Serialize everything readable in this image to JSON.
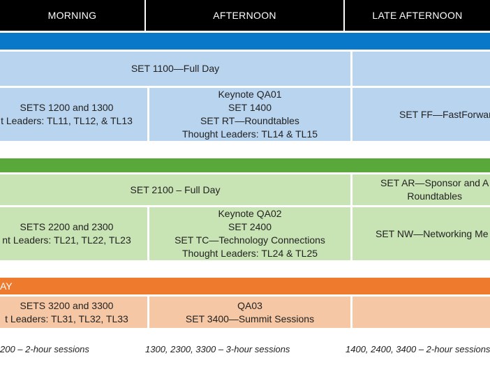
{
  "header": {
    "morning": "MORNING",
    "afternoon": "AFTERNOON",
    "late_afternoon": "LATE AFTERNOON"
  },
  "day1": {
    "full_day": "SET 1100—Full Day",
    "morning_lines": [
      "SETS 1200 and 1300",
      "t Leaders: TL11, TL12, & TL13"
    ],
    "afternoon_lines": [
      "Keynote QA01",
      "SET 1400",
      "SET RT—Roundtables",
      "Thought Leaders: TL14 & TL15"
    ],
    "late": "SET FF—FastForwar"
  },
  "day2": {
    "full_day": "SET 2100 – Full Day",
    "late_top_lines": [
      "SET AR—Sponsor and A",
      "Roundtables"
    ],
    "morning_lines": [
      "SETS 2200 and 2300",
      "nt Leaders: TL21, TL22, TL23"
    ],
    "afternoon_lines": [
      "Keynote QA02",
      "SET 2400",
      "SET TC—Technology Connections",
      "Thought Leaders: TL24 & TL25"
    ],
    "late": "SET NW—Networking Me"
  },
  "day3": {
    "bar_label": "AY",
    "morning_lines": [
      "SETS 3200 and 3300",
      "t Leaders: TL31, TL32, TL33"
    ],
    "afternoon_lines": [
      "QA03",
      "SET 3400—Summit Sessions"
    ]
  },
  "footer": {
    "morning": "200 – 2-hour sessions",
    "afternoon": "1300, 2300, 3300 – 3-hour sessions",
    "late": "1400, 2400, 3400 – 2-hour sessions"
  }
}
